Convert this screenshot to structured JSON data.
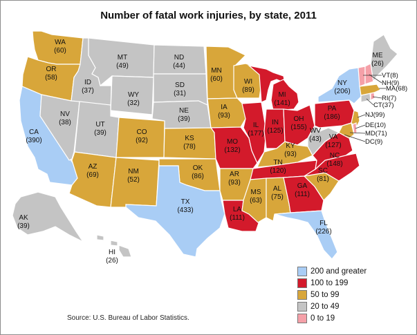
{
  "title": "Number of fatal work injuries, by state, 2011",
  "source": "Source: U.S. Bureau of Labor Statistics.",
  "legend": [
    {
      "label": "200 and greater",
      "color": "#a9cdf5"
    },
    {
      "label": "100 to 199",
      "color": "#d31a2b"
    },
    {
      "label": "50 to 99",
      "color": "#d8a63a"
    },
    {
      "label": "20 to 49",
      "color": "#c4c4c4"
    },
    {
      "label": "0 to 19",
      "color": "#f5a0a8"
    }
  ],
  "states": {
    "WA": {
      "label": "WA",
      "value": "(60)"
    },
    "OR": {
      "label": "OR",
      "value": "(58)"
    },
    "CA": {
      "label": "CA",
      "value": "(390)"
    },
    "ID": {
      "label": "ID",
      "value": "(37)"
    },
    "NV": {
      "label": "NV",
      "value": "(38)"
    },
    "MT": {
      "label": "MT",
      "value": "(49)"
    },
    "WY": {
      "label": "WY",
      "value": "(32)"
    },
    "UT": {
      "label": "UT",
      "value": "(39)"
    },
    "AZ": {
      "label": "AZ",
      "value": "(69)"
    },
    "CO": {
      "label": "CO",
      "value": "(92)"
    },
    "NM": {
      "label": "NM",
      "value": "(52)"
    },
    "ND": {
      "label": "ND",
      "value": "(44)"
    },
    "SD": {
      "label": "SD",
      "value": "(31)"
    },
    "NE": {
      "label": "NE",
      "value": "(39)"
    },
    "KS": {
      "label": "KS",
      "value": "(78)"
    },
    "OK": {
      "label": "OK",
      "value": "(86)"
    },
    "TX": {
      "label": "TX",
      "value": "(433)"
    },
    "MN": {
      "label": "MN",
      "value": "(60)"
    },
    "IA": {
      "label": "IA",
      "value": "(93)"
    },
    "MO": {
      "label": "MO",
      "value": "(132)"
    },
    "AR": {
      "label": "AR",
      "value": "(93)"
    },
    "LA": {
      "label": "LA",
      "value": "(111)"
    },
    "WI": {
      "label": "WI",
      "value": "(89)"
    },
    "IL": {
      "label": "IL",
      "value": "(177)"
    },
    "MI": {
      "label": "MI",
      "value": "(141)"
    },
    "IN": {
      "label": "IN",
      "value": "(125)"
    },
    "OH": {
      "label": "OH",
      "value": "(155)"
    },
    "KY": {
      "label": "KY",
      "value": "(93)"
    },
    "TN": {
      "label": "TN",
      "value": "(120)"
    },
    "MS": {
      "label": "MS",
      "value": "(63)"
    },
    "AL": {
      "label": "AL",
      "value": "(75)"
    },
    "GA": {
      "label": "GA",
      "value": "(111)"
    },
    "FL": {
      "label": "FL",
      "value": "(226)"
    },
    "SC": {
      "label": "SC",
      "value": "(81)"
    },
    "NC": {
      "label": "NC",
      "value": "(148)"
    },
    "VA": {
      "label": "VA",
      "value": "(127)"
    },
    "WV": {
      "label": "WV",
      "value": "(43)"
    },
    "PA": {
      "label": "PA",
      "value": "(186)"
    },
    "NY": {
      "label": "NY",
      "value": "(206)"
    },
    "ME": {
      "label": "ME",
      "value": "(26)"
    },
    "AK": {
      "label": "AK",
      "value": "(39)"
    },
    "HI": {
      "label": "HI",
      "value": "(26)"
    },
    "VT": {
      "label": "VT(8)"
    },
    "NH": {
      "label": "NH(9)"
    },
    "MA": {
      "label": "MA(68)"
    },
    "RI": {
      "label": "RI(7)"
    },
    "CT": {
      "label": "CT(37)"
    },
    "NJ": {
      "label": "NJ(99)"
    },
    "DE": {
      "label": "DE(10)"
    },
    "MD": {
      "label": "MD(71)"
    },
    "DC": {
      "label": "DC(9)"
    }
  }
}
